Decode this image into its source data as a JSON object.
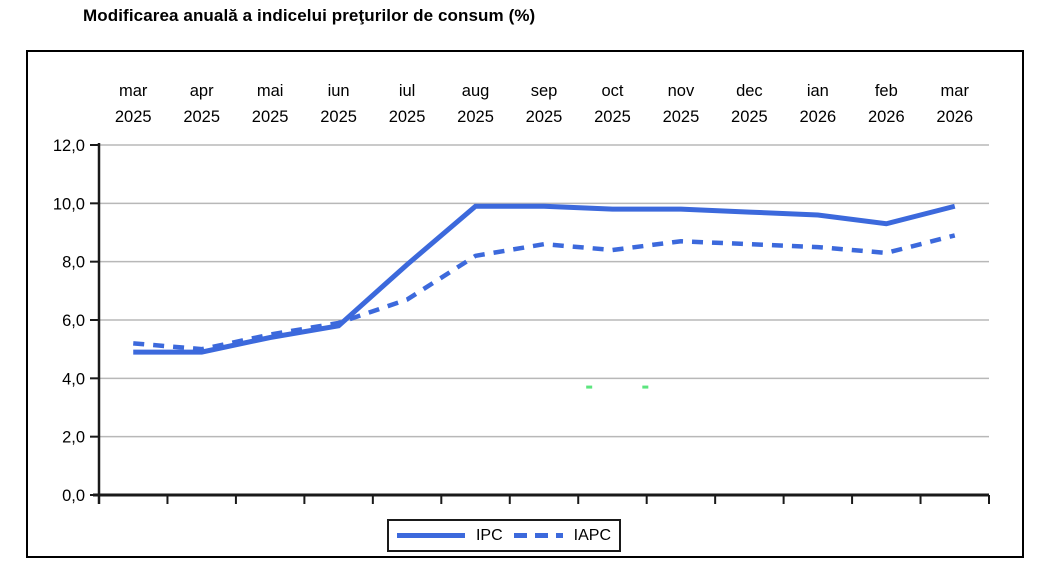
{
  "title": "Modificarea anuală a indicelui preţurilor de consum (%)",
  "chart_data": {
    "type": "line",
    "title": "Modificarea anuală a indicelui preţurilor de consum (%)",
    "categories": [
      "mar 2025",
      "apr 2025",
      "mai 2025",
      "iun 2025",
      "iul 2025",
      "aug 2025",
      "sep 2025",
      "oct 2025",
      "nov 2025",
      "dec 2025",
      "ian 2026",
      "feb 2026",
      "mar 2026"
    ],
    "series": [
      {
        "name": "IPC",
        "style": "solid",
        "values": [
          4.9,
          4.9,
          5.4,
          5.8,
          7.9,
          9.9,
          9.9,
          9.8,
          9.8,
          9.7,
          9.6,
          9.3,
          9.9
        ]
      },
      {
        "name": "IAPC",
        "style": "dashed",
        "values": [
          5.2,
          5.0,
          5.5,
          5.9,
          6.7,
          8.2,
          8.6,
          8.4,
          8.7,
          8.6,
          8.5,
          8.3,
          8.9
        ]
      }
    ],
    "xlabel": "",
    "ylabel": "",
    "ylim": [
      0,
      12
    ],
    "ytick_step": 2,
    "ytick_labels": [
      "0,0",
      "2,0",
      "4,0",
      "6,0",
      "8,0",
      "10,0",
      "12,0"
    ],
    "grid": true,
    "legend_position": "bottom-center"
  },
  "colors": {
    "line": "#3c69dc",
    "grid": "#b8b8b8",
    "axis": "#1a1a1a",
    "artifact_dot": "#5ce57e"
  },
  "artifact_dots": [
    {
      "x_index": 6.66,
      "value": 3.7
    },
    {
      "x_index": 7.48,
      "value": 3.7
    }
  ]
}
